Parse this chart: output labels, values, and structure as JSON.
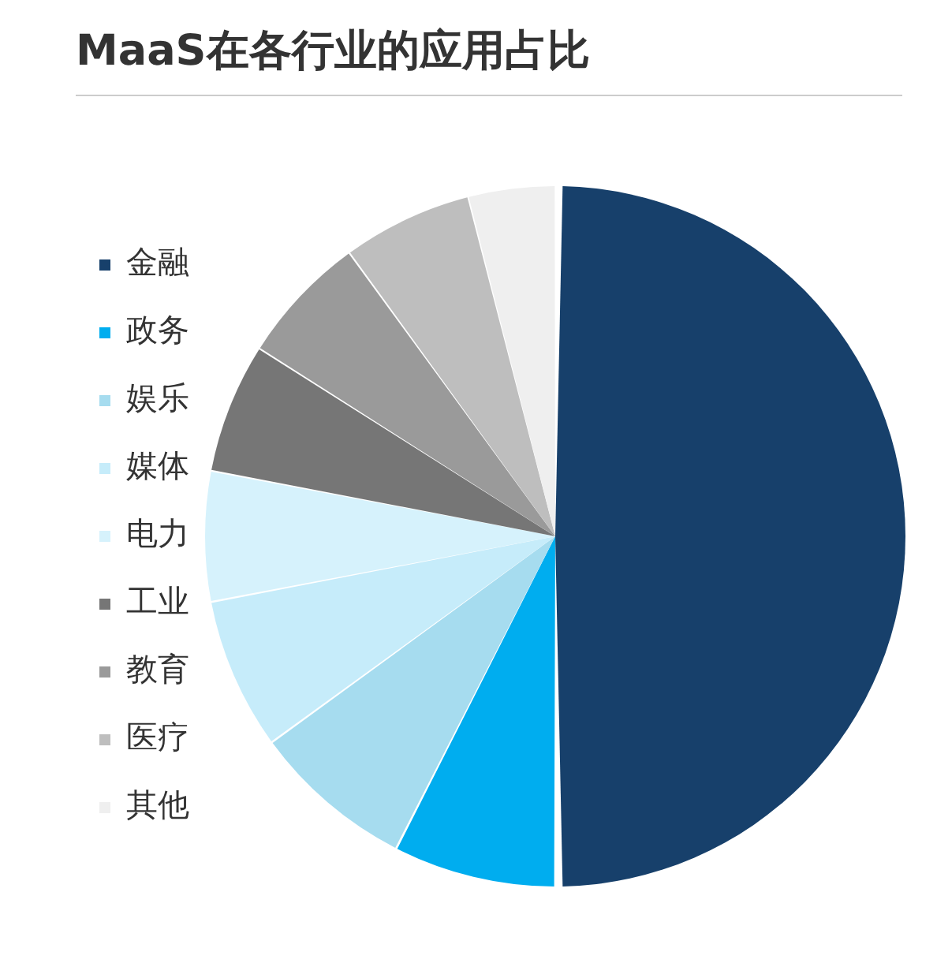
{
  "chart_data": {
    "type": "pie",
    "title": "MaaS在各行业的应用占比",
    "categories": [
      "金融",
      "政务",
      "娱乐",
      "媒体",
      "电力",
      "工业",
      "教育",
      "医疗",
      "其他"
    ],
    "values": [
      50,
      7.5,
      7.5,
      7,
      6,
      6,
      6,
      6,
      4
    ],
    "colors": [
      "#17406b",
      "#00adef",
      "#a6dcef",
      "#c6ecfa",
      "#d6f2fc",
      "#767676",
      "#9a9a9a",
      "#bebebe",
      "#efefef"
    ],
    "legend": "left"
  }
}
